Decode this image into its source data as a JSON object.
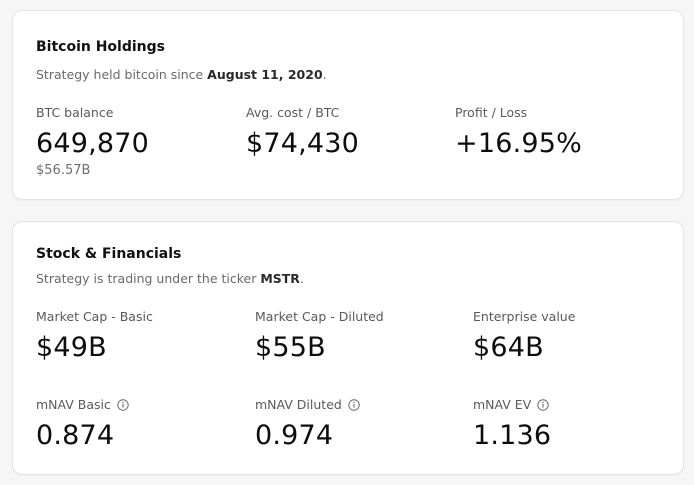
{
  "holdings": {
    "title": "Bitcoin Holdings",
    "subtitle_prefix": "Strategy held bitcoin since ",
    "subtitle_date": "August 11, 2020",
    "subtitle_suffix": ".",
    "stats": [
      {
        "label": "BTC balance",
        "value": "649,870",
        "secondary": "$56.57B"
      },
      {
        "label": "Avg. cost / BTC",
        "value": "$74,430"
      },
      {
        "label": "Profit / Loss",
        "value": "+16.95%"
      }
    ]
  },
  "stock": {
    "title": "Stock & Financials",
    "subtitle_prefix": "Strategy is trading under the ticker ",
    "subtitle_ticker": "MSTR",
    "subtitle_suffix": ".",
    "stats": [
      {
        "label": "Market Cap - Basic",
        "value": "$49B"
      },
      {
        "label": "Market Cap - Diluted",
        "value": "$55B"
      },
      {
        "label": "Enterprise value",
        "value": "$64B"
      },
      {
        "label": "mNAV Basic",
        "value": "0.874",
        "icon": "info-icon"
      },
      {
        "label": "mNAV Diluted",
        "value": "0.974",
        "icon": "info-icon"
      },
      {
        "label": "mNAV EV",
        "value": "1.136",
        "icon": "info-icon"
      }
    ]
  },
  "colors": {
    "background": "#f6f6f7",
    "card": "#ffffff",
    "border": "#e3e3e6",
    "text_primary": "#0d0d10",
    "text_muted": "#666a70"
  }
}
